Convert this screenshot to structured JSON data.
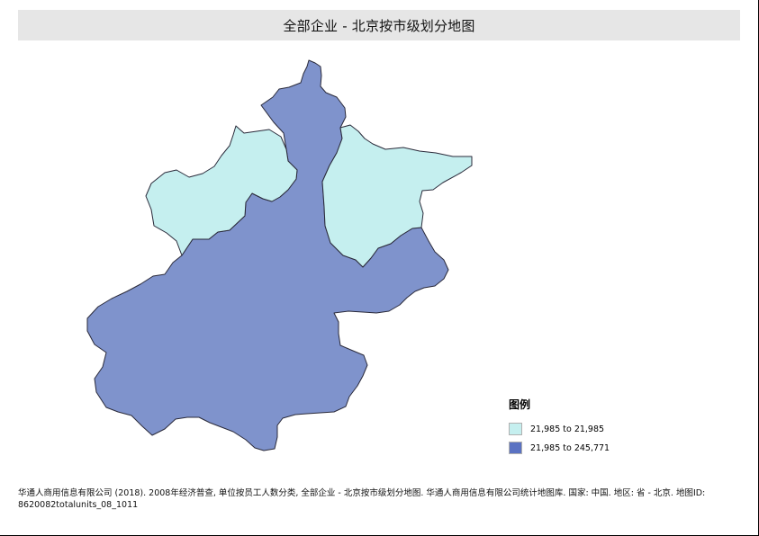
{
  "title": "全部企业  - 北京按市级划分地图",
  "map": {
    "regions": [
      {
        "name": "",
        "legend_class": 0,
        "color": "#c5efef"
      },
      {
        "name": "",
        "legend_class": 0,
        "color": "#c5efef"
      },
      {
        "name": "",
        "legend_class": 1,
        "color": "#7f93cc"
      }
    ],
    "border_color": "#2a2a3a"
  },
  "legend": {
    "title": "图例",
    "items": [
      {
        "label": "21,985 to 21,985",
        "color": "#c5efef"
      },
      {
        "label": "21,985 to 245,771",
        "color": "#5a72c2"
      }
    ]
  },
  "source": {
    "line1": "华通人商用信息有限公司 (2018). 2008年经济普查, 单位按员工人数分类, 全部企业  - 北京按市级划分地图. 华通人商用信息有限公司统计地图库. 国家: 中国. 地区: 省 - 北京.  地图ID:",
    "line2": "8620082totalunits_08_1011"
  }
}
